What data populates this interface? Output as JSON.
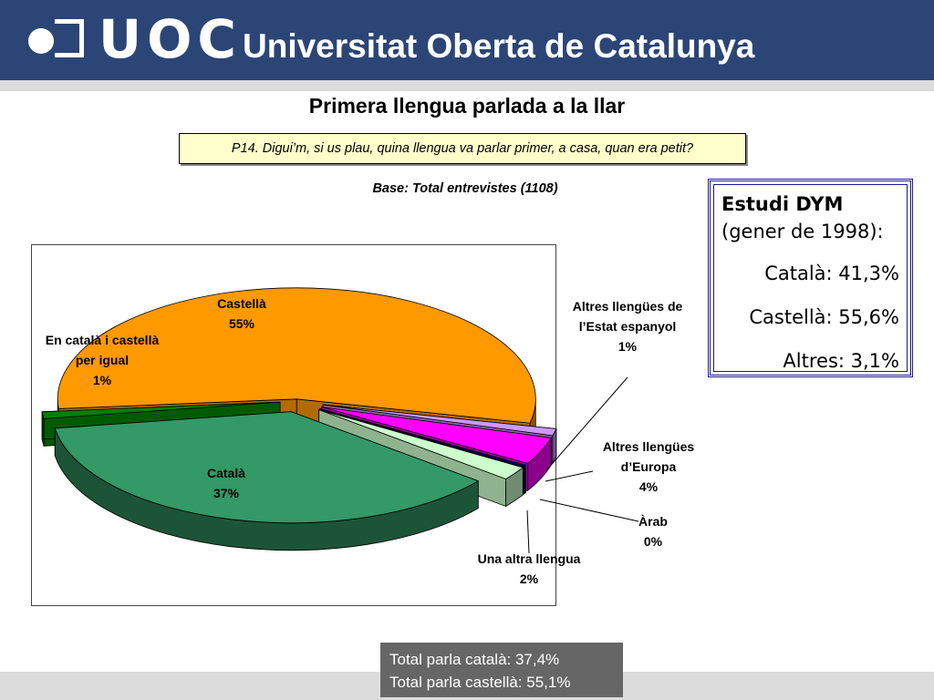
{
  "header": {
    "logo_text": "UOC",
    "university_name": "Universitat Oberta de Catalunya",
    "colors": {
      "header_bg": "#2b4576",
      "header_line": "#dcdcdc"
    }
  },
  "slide": {
    "title": "Primera llengua parlada a la llar",
    "question": "P14. Digui’m, si us plau, quina llengua va parlar primer, a casa, quan era petit?",
    "base": "Base: Total entrevistes (1108)"
  },
  "chart_data": {
    "type": "pie",
    "style": "3d-exploded",
    "slices": [
      {
        "label_lines": [
          "Castellà",
          "55%"
        ],
        "value": 55,
        "color": "#ff9900"
      },
      {
        "label_lines": [
          "Altres llengües de",
          "l’Estat espanyol",
          "1%"
        ],
        "value": 1,
        "color": "#cc99ff"
      },
      {
        "label_lines": [
          "Altres llengües",
          "d’Europa",
          "4%"
        ],
        "value": 4,
        "color": "#ff00ff"
      },
      {
        "label_lines": [
          "Àrab",
          "0%"
        ],
        "value": 0,
        "color": "#000080"
      },
      {
        "label_lines": [
          "Una altra llengua",
          "2%"
        ],
        "value": 2,
        "color": "#ccffcc"
      },
      {
        "label_lines": [
          "Català",
          "37%"
        ],
        "value": 37,
        "color": "#339966"
      },
      {
        "label_lines": [
          "En català i castellà",
          "per igual",
          "1%"
        ],
        "value": 1,
        "color": "#008000"
      }
    ]
  },
  "dym_box": {
    "title": "Estudi DYM",
    "subtitle": "(gener de 1998):",
    "items": [
      "Català: 41,3%",
      "Castellà: 55,6%",
      "Altres: 3,1%"
    ]
  },
  "totals": {
    "catala": "Total parla català: 37,4%",
    "castella": "Total parla castellà: 55,1%"
  }
}
